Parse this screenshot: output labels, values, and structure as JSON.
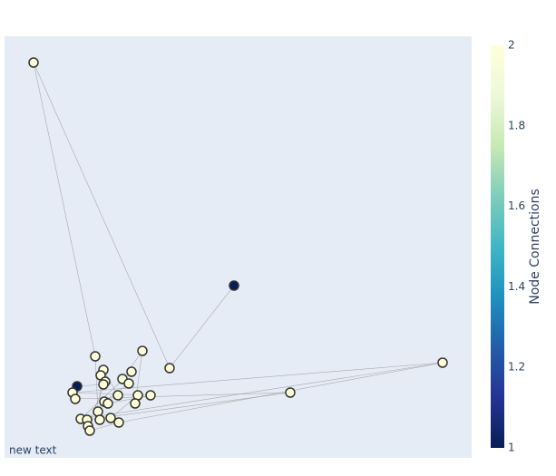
{
  "chart_data": {
    "type": "network",
    "x": [
      32,
      253,
      182,
      483,
      315,
      100,
      152,
      80,
      75,
      78,
      109,
      106,
      140,
      130,
      111,
      137,
      109,
      147,
      161,
      125,
      110,
      114,
      144,
      103,
      84,
      91,
      105,
      117,
      92,
      94,
      126
    ],
    "y": [
      436,
      190,
      99,
      105,
      72,
      112,
      118,
      79,
      72,
      65,
      97,
      91,
      95,
      87,
      84,
      82,
      81,
      69,
      69,
      69,
      62,
      60,
      60,
      51,
      43,
      42,
      42,
      44,
      35,
      30,
      39
    ],
    "values": [
      2,
      1,
      2,
      2,
      2,
      2,
      2,
      1,
      2,
      2,
      2,
      2,
      2,
      2,
      2,
      2,
      2,
      2,
      2,
      2,
      2,
      2,
      2,
      2,
      2,
      2,
      2,
      2,
      2,
      2,
      2
    ],
    "edges": [
      [
        0,
        5
      ],
      [
        0,
        2
      ],
      [
        2,
        1
      ],
      [
        3,
        8
      ],
      [
        3,
        30
      ],
      [
        3,
        24
      ],
      [
        4,
        9
      ],
      [
        4,
        25
      ],
      [
        6,
        13
      ],
      [
        6,
        22
      ],
      [
        7,
        16
      ],
      [
        5,
        23
      ],
      [
        10,
        19
      ],
      [
        11,
        26
      ],
      [
        12,
        24
      ],
      [
        14,
        28
      ],
      [
        15,
        20
      ],
      [
        17,
        27
      ],
      [
        18,
        21
      ],
      [
        29,
        30
      ],
      [
        8,
        18
      ]
    ],
    "xlim": [
      0,
      515
    ],
    "ylim": [
      0,
      465
    ],
    "colorscale": [
      "#081d58",
      "#253494",
      "#225ea8",
      "#1d91c0",
      "#41b6c4",
      "#7fcdbb",
      "#c7e9b4",
      "#edf8d9",
      "#ffffd9"
    ],
    "clim": [
      1,
      2
    ],
    "colorbar_title": "Node Connections",
    "colorbar_ticks": [
      1,
      1.2,
      1.4,
      1.6,
      1.8,
      2
    ],
    "annotation": "new text"
  }
}
